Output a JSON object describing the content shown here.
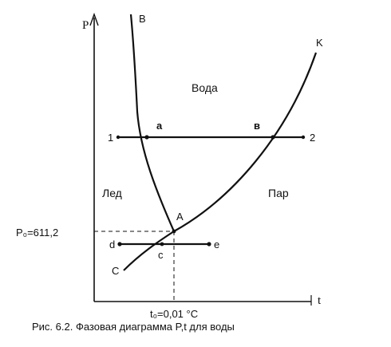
{
  "diagram": {
    "axes": {
      "y_label": "P",
      "x_label": "t"
    },
    "curve_labels": {
      "melting_top": "B",
      "vaporization_end": "K",
      "sublimation_start": "C",
      "triple_point": "A"
    },
    "regions": {
      "water": "Вода",
      "ice": "Лед",
      "vapor": "Пар"
    },
    "upper_isobar": {
      "start": "1",
      "end": "2",
      "intersection_melting": "a",
      "intersection_vapor": "в"
    },
    "lower_isobar": {
      "start": "d",
      "end": "e",
      "intersection": "c"
    },
    "triple_point_pressure": "P₀=611,2",
    "triple_point_temperature": "t₀=0,01 °C"
  },
  "caption": "Рис. 6.2. Фазовая диаграмма P,t  для воды"
}
